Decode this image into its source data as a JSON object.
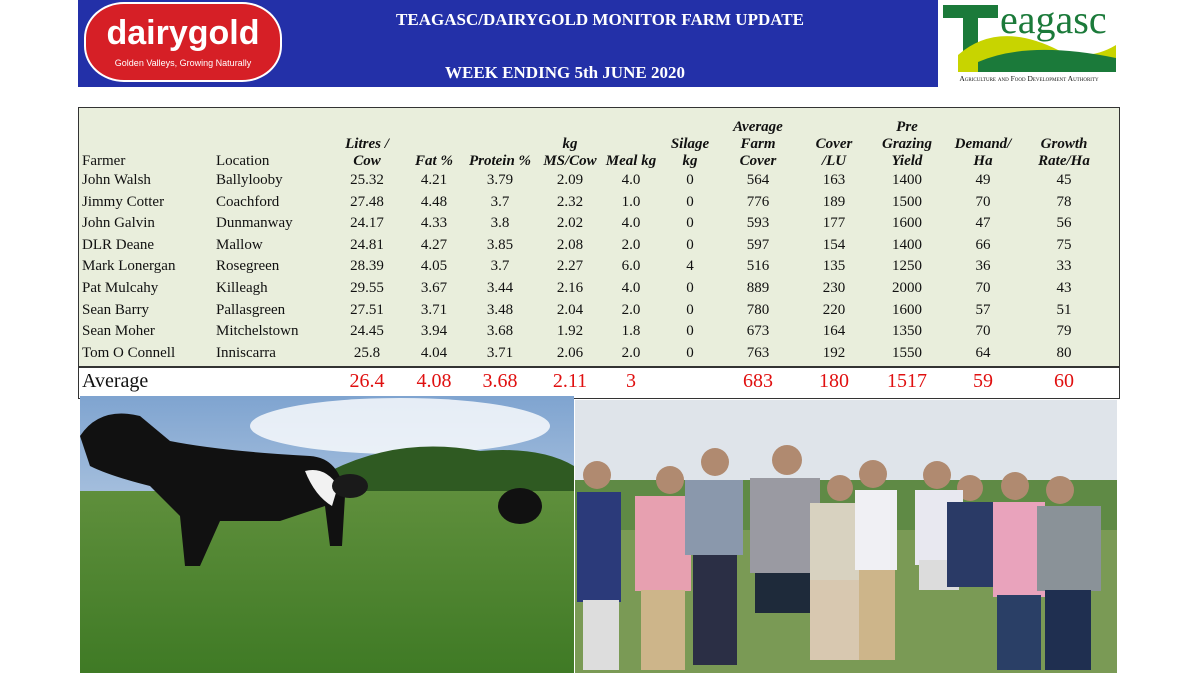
{
  "header": {
    "logo": "dairygold",
    "logo_tagline": "Golden Valleys, Growing Naturally",
    "title": "TEAGASC/DAIRYGOLD MONITOR FARM UPDATE",
    "subtitle": "WEEK ENDING 5th JUNE 2020",
    "partner_logo": "eagasc",
    "partner_tagline": "Agriculture and Food Development Authority"
  },
  "table": {
    "columns": [
      "Farmer",
      "Location",
      "Litres / Cow",
      "Fat %",
      "Protein %",
      "kg MS/Cow",
      "Meal kg",
      "Silage kg",
      "Average Farm Cover",
      "Cover /LU",
      "Pre Grazing Yield",
      "Demand/ Ha",
      "Growth Rate/Ha"
    ],
    "rows": [
      [
        "John Walsh",
        "Ballylooby",
        "25.32",
        "4.21",
        "3.79",
        "2.09",
        "4.0",
        "0",
        "564",
        "163",
        "1400",
        "49",
        "45"
      ],
      [
        "Jimmy Cotter",
        "Coachford",
        "27.48",
        "4.48",
        "3.7",
        "2.32",
        "1.0",
        "0",
        "776",
        "189",
        "1500",
        "70",
        "78"
      ],
      [
        "John Galvin",
        "Dunmanway",
        "24.17",
        "4.33",
        "3.8",
        "2.02",
        "4.0",
        "0",
        "593",
        "177",
        "1600",
        "47",
        "56"
      ],
      [
        "DLR Deane",
        "Mallow",
        "24.81",
        "4.27",
        "3.85",
        "2.08",
        "2.0",
        "0",
        "597",
        "154",
        "1400",
        "66",
        "75"
      ],
      [
        "Mark Lonergan",
        "Rosegreen",
        "28.39",
        "4.05",
        "3.7",
        "2.27",
        "6.0",
        "4",
        "516",
        "135",
        "1250",
        "36",
        "33"
      ],
      [
        "Pat Mulcahy",
        "Killeagh",
        "29.55",
        "3.67",
        "3.44",
        "2.16",
        "4.0",
        "0",
        "889",
        "230",
        "2000",
        "70",
        "43"
      ],
      [
        "Sean Barry",
        "Pallasgreen",
        "27.51",
        "3.71",
        "3.48",
        "2.04",
        "2.0",
        "0",
        "780",
        "220",
        "1600",
        "57",
        "51"
      ],
      [
        "Sean Moher",
        "Mitchelstown",
        "24.45",
        "3.94",
        "3.68",
        "1.92",
        "1.8",
        "0",
        "673",
        "164",
        "1350",
        "70",
        "79"
      ],
      [
        "Tom O Connell",
        "Inniscarra",
        "25.8",
        "4.04",
        "3.71",
        "2.06",
        "2.0",
        "0",
        "763",
        "192",
        "1550",
        "64",
        "80"
      ]
    ],
    "average": {
      "label": "Average",
      "values": [
        "26.4",
        "4.08",
        "3.68",
        "2.11",
        "3",
        null,
        "683",
        "180",
        "1517",
        "59",
        "60"
      ]
    }
  }
}
